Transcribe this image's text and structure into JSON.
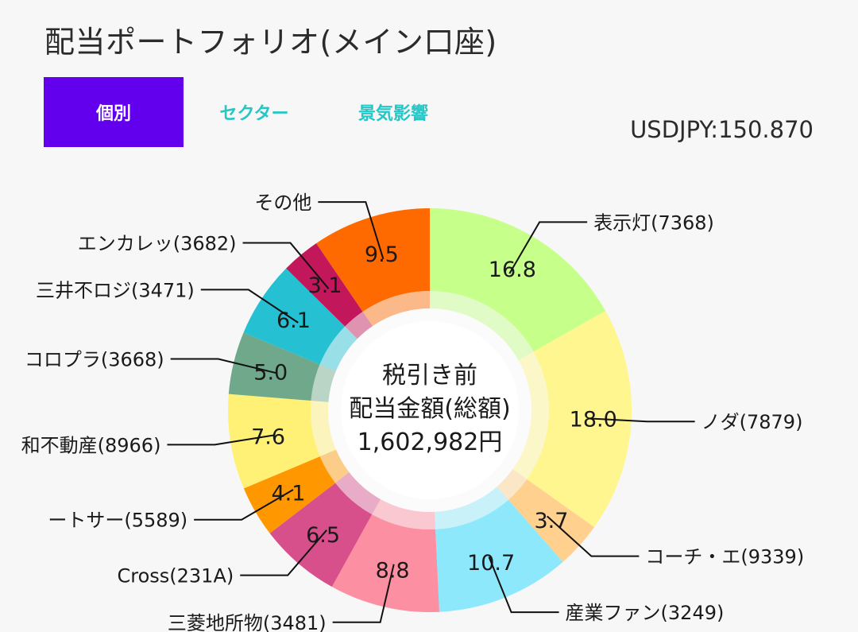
{
  "header": {
    "title": "配当ポートフォリオ(メイン口座)",
    "rate": "USDJPY:150.870"
  },
  "tabs": [
    {
      "label": "個別",
      "active": true
    },
    {
      "label": "セクター",
      "active": false
    },
    {
      "label": "景気影響",
      "active": false
    }
  ],
  "colors": {
    "accent": "#6200ee",
    "tab_inactive": "#26c6c6"
  },
  "chart_data": {
    "type": "pie",
    "variant": "donut",
    "center_text": [
      "税引き前",
      "配当金額(総額)",
      "1,602,982円"
    ],
    "slices": [
      {
        "label": "表示灯(7368)",
        "value": 16.8,
        "color": "#c6ff8a"
      },
      {
        "label": "ノダ(7879)",
        "value": 18.0,
        "color": "#fff68f"
      },
      {
        "label": "コーチ・エ(9339)",
        "value": 3.7,
        "color": "#ffd08e"
      },
      {
        "label": "産業ファン(3249)",
        "value": 10.7,
        "color": "#8ee8fb"
      },
      {
        "label": "三菱地所物(3481)",
        "value": 8.8,
        "color": "#fc8fa1"
      },
      {
        "label": "Cross(231A)",
        "value": 6.5,
        "color": "#d8508b"
      },
      {
        "label": "ートサー(5589)",
        "value": 4.1,
        "color": "#ff9800"
      },
      {
        "label": "和不動産(8966)",
        "value": 7.6,
        "color": "#fff176"
      },
      {
        "label": "コロプラ(3668)",
        "value": 5.0,
        "color": "#6fa88a"
      },
      {
        "label": "三井不ロジ(3471)",
        "value": 6.1,
        "color": "#26c0d3"
      },
      {
        "label": "エンカレッ(3682)",
        "value": 3.1,
        "color": "#c2185b"
      },
      {
        "label": "その他",
        "value": 9.5,
        "color": "#ff6a00"
      }
    ]
  }
}
